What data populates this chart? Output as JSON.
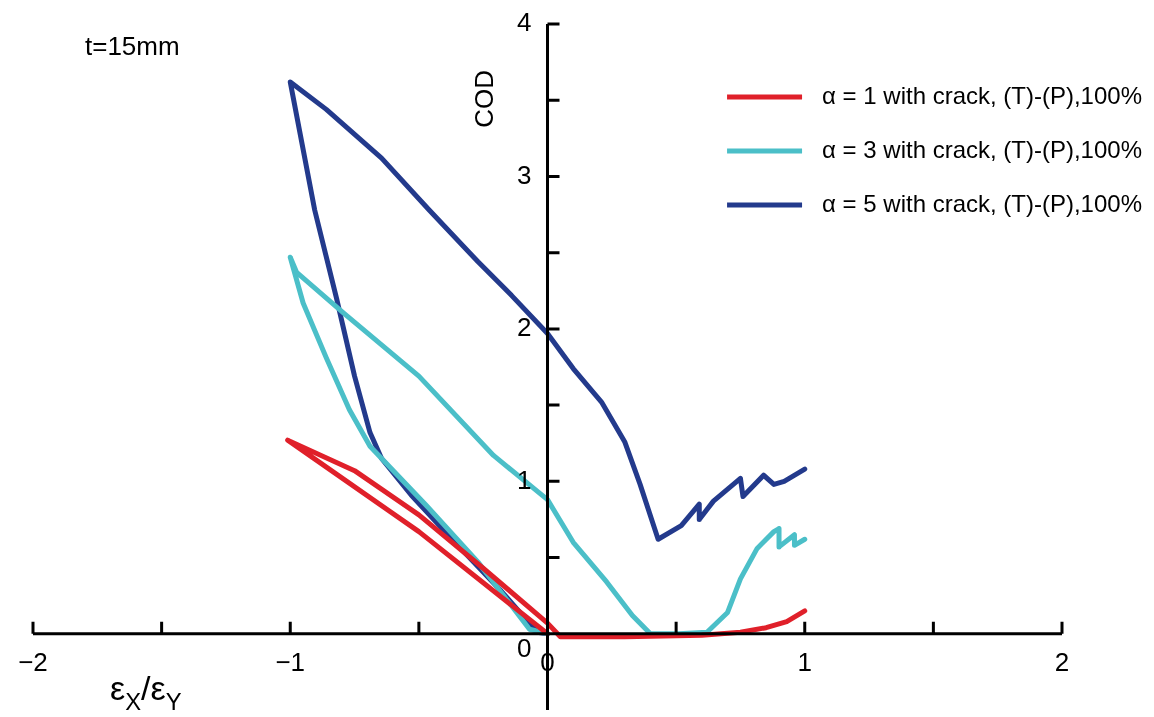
{
  "chart_data": {
    "type": "line",
    "xlabel": "ε$_{X}$/ε$_{Y}$",
    "ylabel": "COD",
    "annotations": [
      "t=15mm"
    ],
    "xlim": [
      -2,
      2
    ],
    "ylim": [
      -0.5,
      4
    ],
    "xticks": [
      {
        "value": -2,
        "label": "−2"
      },
      {
        "value": -1.5,
        "label": null
      },
      {
        "value": -1,
        "label": "−1"
      },
      {
        "value": -0.5,
        "label": null
      },
      0,
      {
        "value": 0.5,
        "label": null
      },
      1,
      {
        "value": 1.5,
        "label": null
      },
      2
    ],
    "yticks": [
      0,
      {
        "value": 0.5,
        "label": null
      },
      1,
      {
        "value": 1.5,
        "label": null
      },
      2,
      {
        "value": 2.5,
        "label": null
      },
      3,
      {
        "value": 3.5,
        "label": null
      },
      4
    ],
    "legend": "top right",
    "grid": false,
    "marker": "none",
    "line_style": "solid",
    "series": [
      {
        "name": "α = 1 with crack, (T)-(P),100%",
        "color": "#e0202a",
        "x": [
          0,
          -0.5,
          -1.01,
          -0.75,
          -0.5,
          -0.25,
          0,
          0.05,
          0.3,
          0.6,
          0.75,
          0.85,
          0.93,
          1
        ],
        "values": [
          0,
          0.67,
          1.27,
          1.07,
          0.78,
          0.43,
          0.07,
          -0.02,
          -0.02,
          -0.01,
          0.01,
          0.04,
          0.08,
          0.15
        ]
      },
      {
        "name": "α = 3 with crack, (T)-(P),100%",
        "color": "#4bbfc8",
        "x": [
          0,
          -0.07,
          -0.27,
          -0.47,
          -0.69,
          -0.77,
          -0.86,
          -0.95,
          -1,
          -0.975,
          -0.79,
          -0.5,
          -0.21,
          0,
          0.1,
          0.23,
          0.33,
          0.4,
          0.51,
          0.62,
          0.7,
          0.75,
          0.815,
          0.88,
          0.9,
          0.9,
          0.96,
          0.96,
          1
        ],
        "values": [
          0,
          0.03,
          0.47,
          0.84,
          1.23,
          1.47,
          1.81,
          2.17,
          2.47,
          2.37,
          2.1,
          1.69,
          1.17,
          0.88,
          0.6,
          0.34,
          0.12,
          0,
          0,
          0.01,
          0.14,
          0.36,
          0.56,
          0.67,
          0.69,
          0.57,
          0.65,
          0.58,
          0.62
        ]
      },
      {
        "name": "α = 5 with crack, (T)-(P),100%",
        "color": "#233a8c",
        "x": [
          0,
          -0.04,
          -0.18,
          -0.36,
          -0.53,
          -0.645,
          -0.69,
          -0.75,
          -0.82,
          -0.905,
          -1,
          -0.86,
          -0.645,
          -0.46,
          -0.27,
          -0.14,
          0,
          0.1,
          0.21,
          0.3,
          0.36,
          0.43,
          0.52,
          0.59,
          0.59,
          0.645,
          0.75,
          0.76,
          0.84,
          0.88,
          0.92,
          1
        ],
        "values": [
          0,
          0.01,
          0.28,
          0.6,
          0.91,
          1.15,
          1.32,
          1.69,
          2.2,
          2.78,
          3.62,
          3.44,
          3.12,
          2.78,
          2.44,
          2.22,
          1.97,
          1.74,
          1.52,
          1.26,
          0.98,
          0.62,
          0.71,
          0.85,
          0.75,
          0.87,
          1.02,
          0.9,
          1.04,
          0.98,
          1,
          1.08
        ]
      }
    ]
  }
}
